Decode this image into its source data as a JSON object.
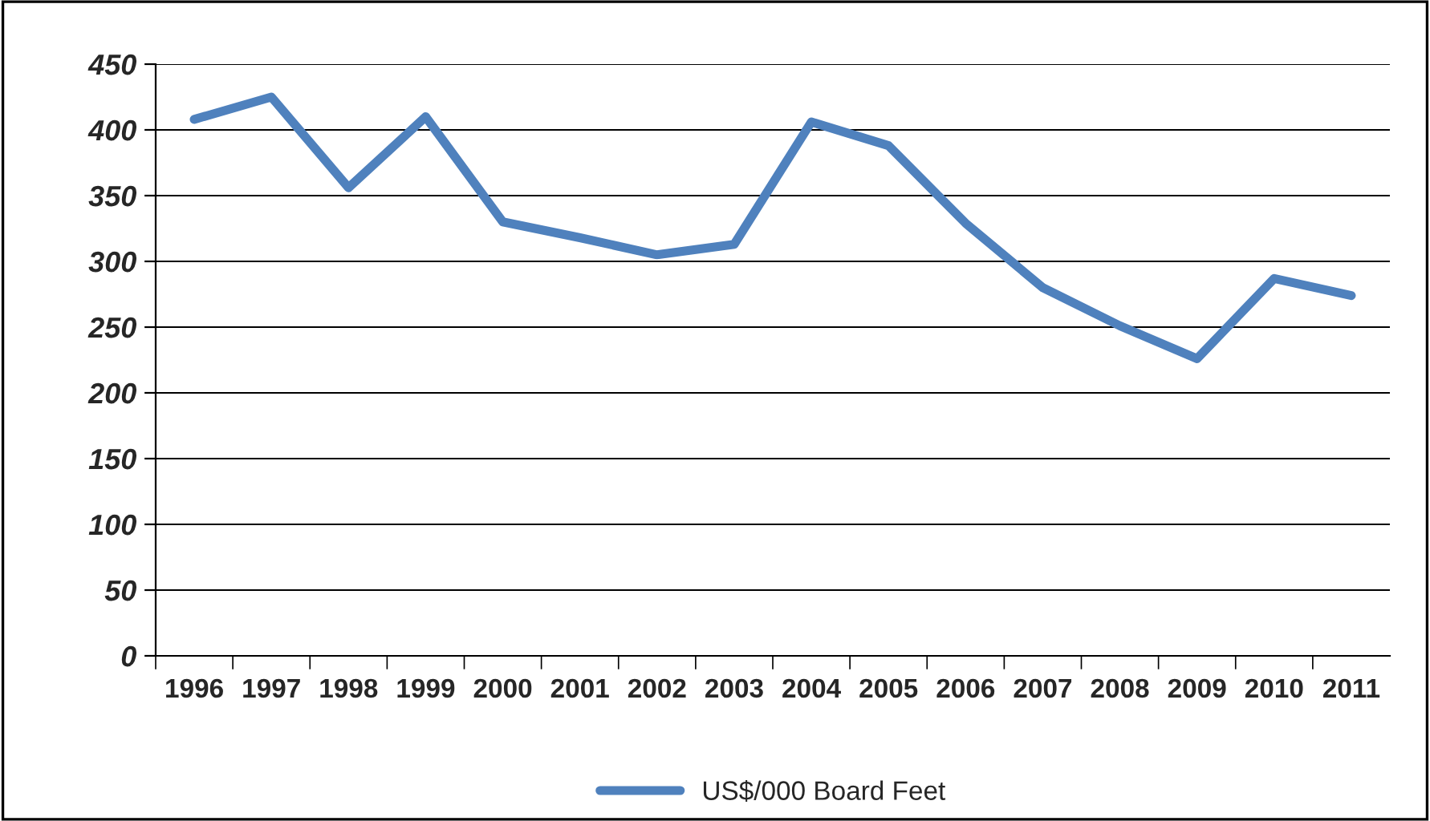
{
  "chart_data": {
    "type": "line",
    "categories": [
      "1996",
      "1997",
      "1998",
      "1999",
      "2000",
      "2001",
      "2002",
      "2003",
      "2004",
      "2005",
      "2006",
      "2007",
      "2008",
      "2009",
      "2010",
      "2011"
    ],
    "series": [
      {
        "name": "US$/000 Board Feet",
        "color": "#4f81bd",
        "values": [
          408,
          425,
          356,
          410,
          330,
          318,
          305,
          313,
          406,
          388,
          329,
          280,
          251,
          226,
          287,
          274
        ]
      }
    ],
    "ylim": [
      0,
      450
    ],
    "yticks": [
      0,
      50,
      100,
      150,
      200,
      250,
      300,
      350,
      400,
      450
    ],
    "grid": "y",
    "legend": "bottom",
    "marker": "none",
    "line_style": "solid"
  }
}
